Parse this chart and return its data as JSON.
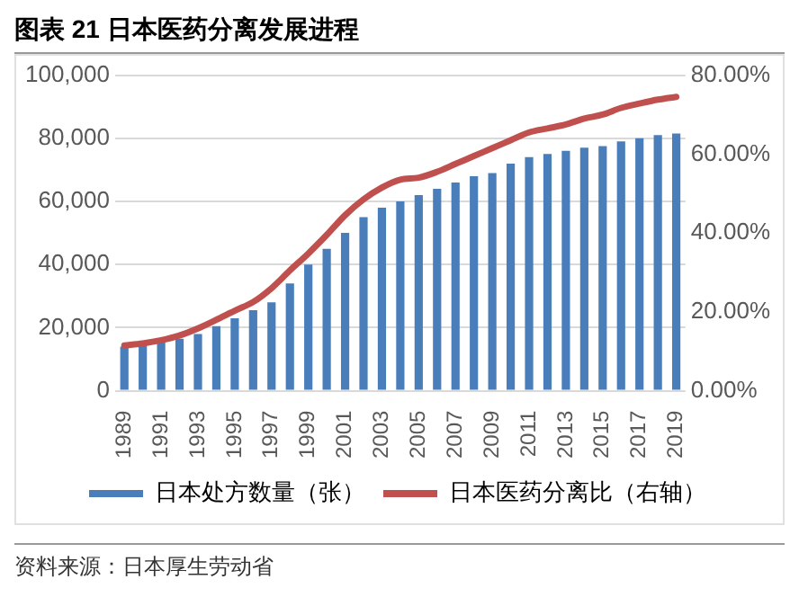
{
  "chart_data": {
    "type": "bar",
    "title": "图表 21 日本医药分离发展进程",
    "categories": [
      "1989",
      null,
      "1991",
      null,
      "1993",
      null,
      "1995",
      null,
      "1997",
      null,
      "1999",
      null,
      "2001",
      null,
      "2003",
      null,
      "2005",
      null,
      "2007",
      null,
      "2009",
      null,
      "2011",
      null,
      "2013",
      null,
      "2015",
      null,
      "2017",
      null,
      "2019"
    ],
    "series": [
      {
        "name": "日本处方数量（张）",
        "color": "#4a7ebb",
        "values": [
          14000,
          14500,
          15500,
          16500,
          18000,
          20500,
          23000,
          25500,
          28000,
          34000,
          40000,
          45000,
          50000,
          55000,
          58000,
          60000,
          62000,
          64000,
          66000,
          68000,
          69000,
          72000,
          74000,
          75000,
          76000,
          77000,
          77500,
          79000,
          80000,
          81000,
          81500
        ]
      },
      {
        "name": "日本医药分离比（右轴）",
        "type": "line",
        "axis": "y2",
        "color": "#c0504d",
        "values": [
          11.5,
          12,
          12.8,
          14,
          15.8,
          18,
          20.3,
          22.5,
          26,
          30.5,
          34.8,
          39.5,
          44.5,
          48.5,
          51.5,
          53.5,
          54,
          55.5,
          57.5,
          59.5,
          61.5,
          63.5,
          65.5,
          66.5,
          67.5,
          69,
          70,
          71.7,
          72.8,
          73.8,
          74.5
        ]
      }
    ],
    "ylim": [
      0,
      100000
    ],
    "yticks": [
      0,
      {
        "value": 20000,
        "label": "20,000"
      },
      {
        "value": 40000,
        "label": "40,000"
      },
      {
        "value": 60000,
        "label": "60,000"
      },
      {
        "value": 80000,
        "label": "80,000"
      },
      {
        "value": 100000,
        "label": "100,000"
      }
    ],
    "y2lim": [
      0,
      80
    ],
    "y2ticks": [
      {
        "value": 0,
        "label": "0.00%"
      },
      {
        "value": 20,
        "label": "20.00%"
      },
      {
        "value": 40,
        "label": "40.00%"
      },
      {
        "value": 60,
        "label": "60.00%"
      },
      {
        "value": 80,
        "label": "80.00%"
      }
    ],
    "grid": "y",
    "legend": "bottom",
    "marker": "none",
    "line_style": "solid",
    "annotations": [
      "资料来源：日本厚生劳动省"
    ]
  }
}
